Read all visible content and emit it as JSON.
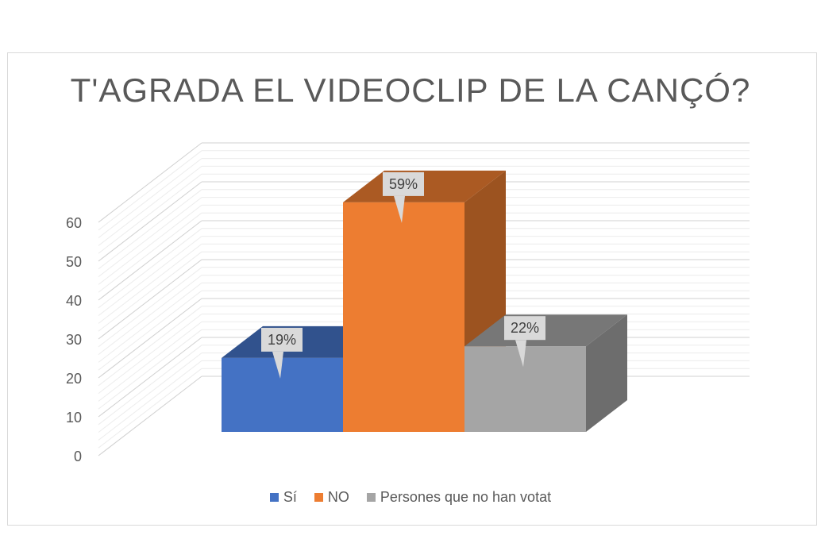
{
  "chart_data": {
    "type": "bar",
    "title": "T'AGRADA EL VIDEOCLIP DE LA CANÇÓ?",
    "categories": [
      "Sí",
      "NO",
      "Persones que no han votat"
    ],
    "values": [
      19,
      59,
      22
    ],
    "data_labels": [
      "19%",
      "59%",
      "22%"
    ],
    "colors": [
      "#4472C4",
      "#ED7D31",
      "#A5A5A5"
    ],
    "ylim": [
      0,
      60
    ],
    "yticks": [
      0,
      10,
      20,
      30,
      40,
      50,
      60
    ],
    "grid": true,
    "legend_position": "bottom",
    "style": "3d-column"
  }
}
